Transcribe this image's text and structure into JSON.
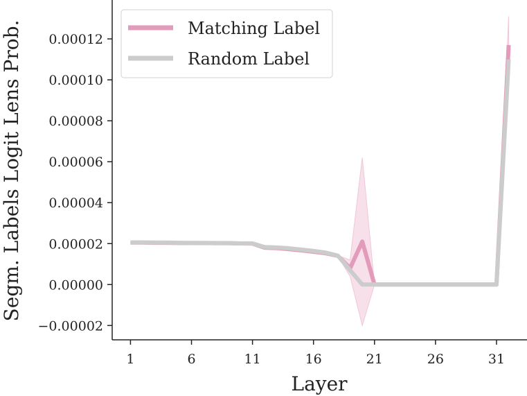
{
  "chart_data": {
    "type": "line",
    "xlabel": "Layer",
    "ylabel": "Segm. Labels Logit Lens Prob.",
    "xlim": [
      -0.5,
      33.5
    ],
    "ylim": [
      -2.7e-05,
      0.000139
    ],
    "x_ticks": [
      1,
      6,
      11,
      16,
      21,
      26,
      31
    ],
    "x_tick_labels": [
      "1",
      "6",
      "11",
      "16",
      "21",
      "26",
      "31"
    ],
    "y_ticks": [
      -2e-05,
      0,
      2e-05,
      4e-05,
      6e-05,
      8e-05,
      0.0001,
      0.00012
    ],
    "y_tick_labels": [
      "−0.00002",
      "0.00000",
      "0.00002",
      "0.00004",
      "0.00006",
      "0.00008",
      "0.00010",
      "0.00012"
    ],
    "grid": false,
    "legend_position": "top-left",
    "x": [
      1,
      2,
      3,
      4,
      5,
      6,
      7,
      8,
      9,
      10,
      11,
      12,
      13,
      14,
      15,
      16,
      17,
      18,
      19,
      20,
      21,
      22,
      23,
      24,
      25,
      26,
      27,
      28,
      29,
      30,
      31,
      32
    ],
    "series": [
      {
        "name": "Matching Label",
        "color": "#e29bbb",
        "band_color": "#f1c6d8",
        "values": [
          2.05e-05,
          2.05e-05,
          2.04e-05,
          2.04e-05,
          2.03e-05,
          2.03e-05,
          2.03e-05,
          2.02e-05,
          2.02e-05,
          2.01e-05,
          2e-05,
          1.8e-05,
          1.78e-05,
          1.73e-05,
          1.67e-05,
          1.6e-05,
          1.53e-05,
          1.4e-05,
          8e-06,
          2.1e-05,
          0.0,
          0.0,
          0.0,
          0.0,
          0.0,
          0.0,
          0.0,
          0.0,
          0.0,
          0.0,
          0.0,
          0.000117
        ],
        "lower": [
          2.04e-05,
          2.04e-05,
          2.03e-05,
          2.03e-05,
          2.02e-05,
          2.02e-05,
          2.02e-05,
          2.01e-05,
          2.01e-05,
          2e-05,
          1.99e-05,
          1.78e-05,
          1.76e-05,
          1.71e-05,
          1.65e-05,
          1.58e-05,
          1.51e-05,
          1.38e-05,
          4e-06,
          -2e-05,
          0.0,
          0.0,
          0.0,
          0.0,
          0.0,
          0.0,
          0.0,
          0.0,
          0.0,
          0.0,
          0.0,
          0.000103
        ],
        "upper": [
          2.06e-05,
          2.06e-05,
          2.05e-05,
          2.05e-05,
          2.04e-05,
          2.04e-05,
          2.04e-05,
          2.03e-05,
          2.03e-05,
          2.02e-05,
          2.01e-05,
          1.82e-05,
          1.8e-05,
          1.75e-05,
          1.69e-05,
          1.62e-05,
          1.55e-05,
          1.42e-05,
          1.2e-05,
          6.2e-05,
          0.0,
          0.0,
          0.0,
          0.0,
          0.0,
          0.0,
          0.0,
          0.0,
          0.0,
          0.0,
          0.0,
          0.000131
        ]
      },
      {
        "name": "Random Label",
        "color": "#cccccc",
        "values": [
          2.05e-05,
          2.06e-05,
          2.05e-05,
          2.05e-05,
          2.04e-05,
          2.03e-05,
          2.03e-05,
          2.03e-05,
          2.02e-05,
          2.01e-05,
          2.01e-05,
          1.83e-05,
          1.81e-05,
          1.77e-05,
          1.71e-05,
          1.64e-05,
          1.56e-05,
          1.41e-05,
          7e-06,
          0.0,
          0.0,
          0.0,
          0.0,
          0.0,
          0.0,
          0.0,
          0.0,
          0.0,
          0.0,
          0.0,
          0.0,
          0.00011
        ]
      }
    ]
  }
}
